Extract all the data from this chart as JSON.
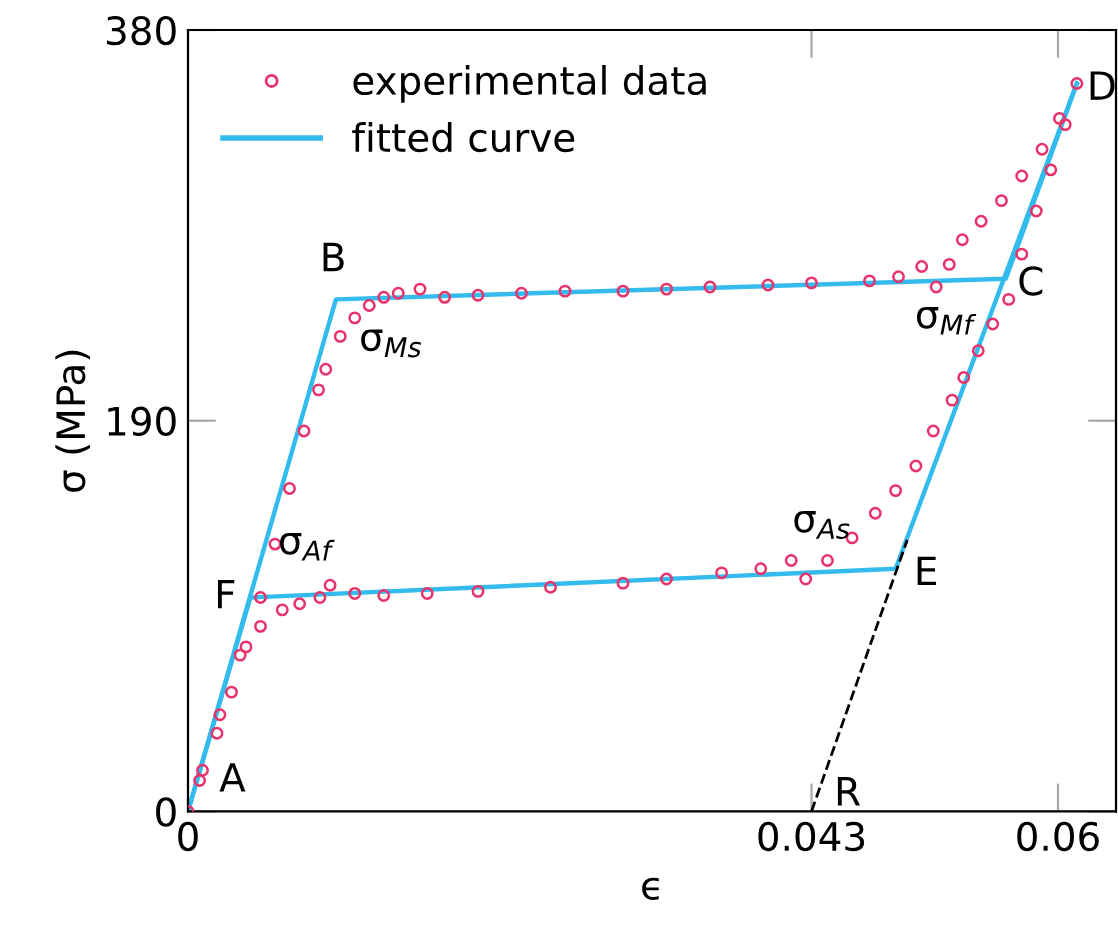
{
  "chart_data": {
    "type": "line",
    "xlabel": "ϵ",
    "ylabel": "σ (MPa)",
    "xlim": [
      0,
      0.064
    ],
    "ylim": [
      0,
      380
    ],
    "xticks": [
      0,
      0.043,
      0.06
    ],
    "yticks": [
      0,
      190,
      380
    ],
    "legend": "top left",
    "grid": false,
    "series": [
      {
        "name": "experimental data",
        "type": "scatter",
        "color": "#e8336b",
        "marker": "circle",
        "x": [
          0,
          0.001,
          0.002,
          0.003,
          0.004,
          0.005,
          0.006,
          0.007,
          0.008,
          0.009,
          0.0095,
          0.0105,
          0.0115,
          0.0125,
          0.0135,
          0.0145,
          0.016,
          0.0177,
          0.02,
          0.023,
          0.026,
          0.03,
          0.033,
          0.036,
          0.04,
          0.043,
          0.047,
          0.049,
          0.0506,
          0.0516,
          0.0525,
          0.0534,
          0.0547,
          0.0561,
          0.0575,
          0.0589,
          0.0601,
          0.0613,
          0.0605,
          0.0595,
          0.0585,
          0.0575,
          0.0566,
          0.0555,
          0.0545,
          0.0535,
          0.0527,
          0.0514,
          0.0502,
          0.0488,
          0.0474,
          0.0458,
          0.0441,
          0.0426,
          0.0416,
          0.0395,
          0.0368,
          0.033,
          0.03,
          0.025,
          0.02,
          0.0165,
          0.0135,
          0.0115,
          0.0098,
          0.0091,
          0.0077,
          0.0065,
          0.005,
          0.0036,
          0.0022,
          0.0008
        ],
        "values": [
          0,
          20,
          38,
          58,
          80,
          104,
          130,
          157,
          185,
          205,
          215,
          231,
          240,
          246,
          250,
          252,
          254,
          250,
          251,
          252,
          253,
          253,
          254,
          255,
          256,
          257,
          258,
          260,
          265,
          255,
          266,
          278,
          287,
          297,
          309,
          322,
          337,
          354,
          334,
          312,
          292,
          271,
          249,
          237,
          224,
          211,
          200,
          185,
          168,
          156,
          145,
          133,
          122,
          113,
          122,
          118,
          116,
          113,
          111,
          109,
          107,
          106,
          105,
          106,
          110,
          104,
          101,
          98,
          90,
          76,
          47,
          15
        ]
      },
      {
        "name": "fitted curve",
        "color": "#33bbee",
        "line_style": "solid",
        "x": [
          0,
          0.0102,
          0.0564,
          0.0613
        ],
        "values": [
          0,
          249,
          259,
          354
        ]
      },
      {
        "color": "#33bbee",
        "line_style": "solid",
        "x": [
          0.0613,
          0.0488,
          0.0043,
          0
        ],
        "values": [
          354,
          118,
          104,
          0
        ]
      },
      {
        "color": "#000000",
        "line_style": "dashed",
        "x": [
          0.043,
          0.0496
        ],
        "values": [
          0,
          132
        ]
      }
    ],
    "annotations": [
      {
        "text": "A",
        "x": 0,
        "y": 0
      },
      {
        "text": "B",
        "x": 0.0102,
        "y": 249
      },
      {
        "text": "C",
        "x": 0.0564,
        "y": 259
      },
      {
        "text": "D",
        "x": 0.0613,
        "y": 354
      },
      {
        "text": "E",
        "x": 0.0488,
        "y": 118
      },
      {
        "text": "F",
        "x": 0.0043,
        "y": 104
      },
      {
        "text": "R",
        "x": 0.043,
        "y": 0
      },
      {
        "text": "σ$_{Ms}$",
        "x": 0.0115,
        "y": 240
      },
      {
        "text": "σ$_{Mf}$",
        "x": 0.0516,
        "y": 255
      },
      {
        "text": "σ$_{Af}$",
        "x": 0.0098,
        "y": 110
      },
      {
        "text": "σ$_{As}$",
        "x": 0.0416,
        "y": 122
      }
    ]
  }
}
